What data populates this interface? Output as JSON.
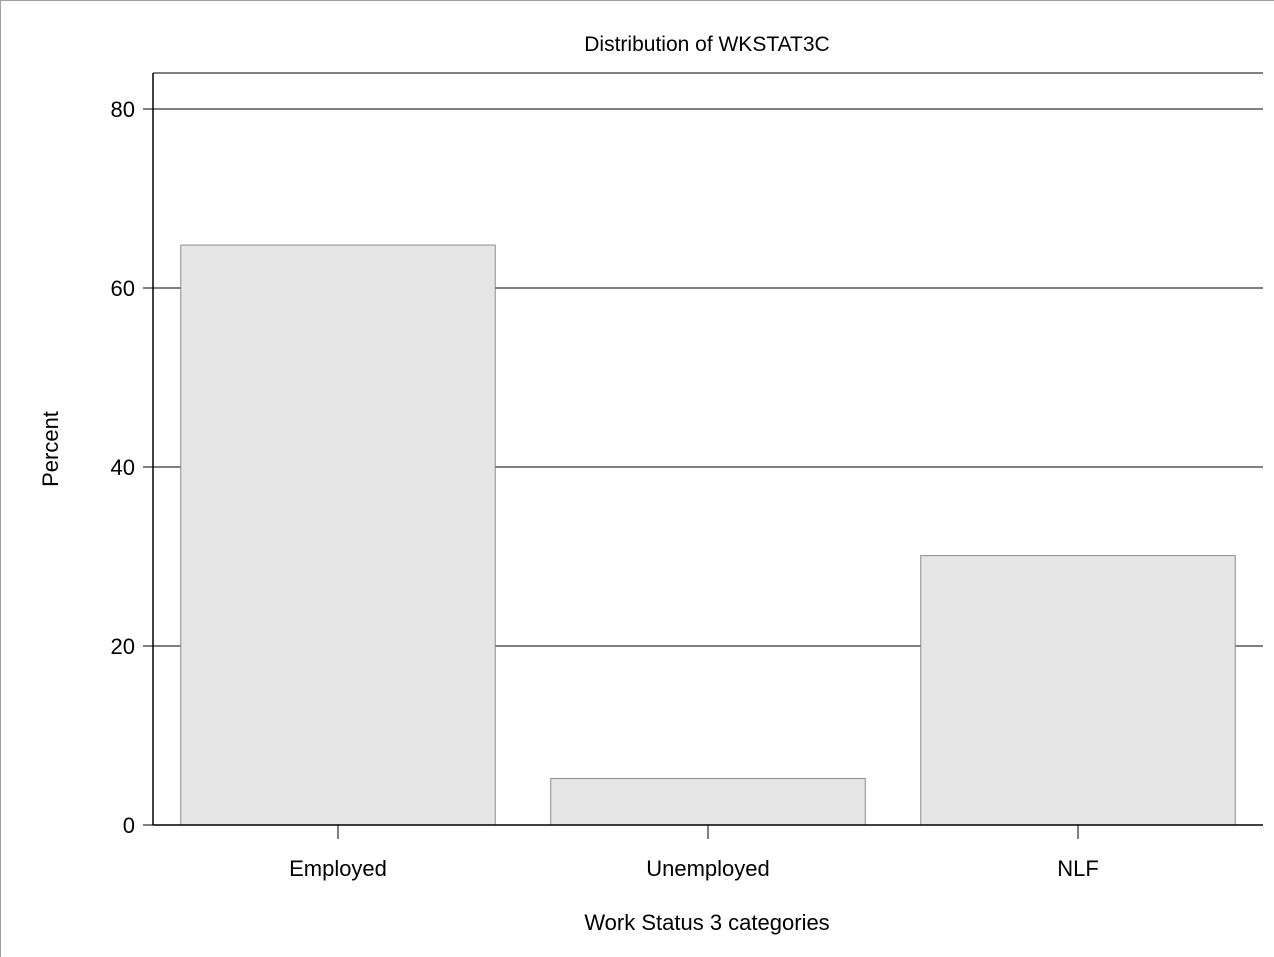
{
  "chart_data": {
    "type": "bar",
    "title": "Distribution of WKSTAT3C",
    "xlabel": "Work Status 3 categories",
    "ylabel": "Percent",
    "categories": [
      "Employed",
      "Unemployed",
      "NLF"
    ],
    "values": [
      64.8,
      5.2,
      30.1
    ],
    "ylim": [
      0,
      80
    ],
    "yticks": [
      0,
      20,
      40,
      60,
      80
    ],
    "grid": true,
    "legend": "none",
    "colors": {
      "bar_fill": "#e6e6e6",
      "bar_stroke": "#8c8c8c",
      "grid": "#000000",
      "axis": "#000000"
    }
  }
}
